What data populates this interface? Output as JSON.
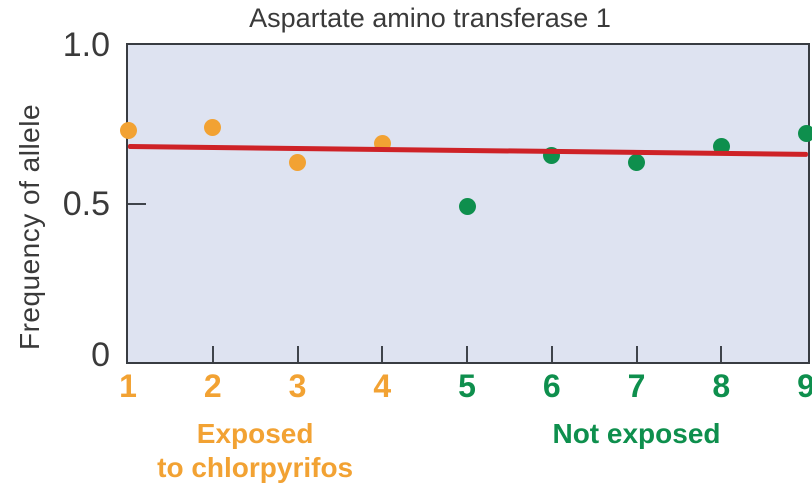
{
  "figure": {
    "title": "Aspartate amino transferase 1",
    "y_axis_label": "Frequency of allele"
  },
  "colors": {
    "exposed": "#F2A233",
    "not_exposed": "#0E8F4D",
    "trend_line": "#CE2227",
    "plot_background": "#DEE3F1",
    "axis": "#383C42",
    "tick": "#3F444B",
    "text": "#3A3A3A"
  },
  "chart_data": {
    "type": "scatter",
    "title": "Aspartate amino transferase 1",
    "xlabel": "",
    "ylabel": "Frequency of allele",
    "xlim": [
      1,
      9
    ],
    "ylim": [
      0,
      1.0
    ],
    "grid": false,
    "legend_position": "below-axis-as-colored-group-labels",
    "y_ticks": [
      {
        "label": "1.0",
        "value": 1.0
      },
      {
        "label": "0.5",
        "value": 0.5
      },
      {
        "label": "0",
        "value": 0.0
      }
    ],
    "x_ticks": [
      {
        "label": "1",
        "value": 1,
        "group": "exposed"
      },
      {
        "label": "2",
        "value": 2,
        "group": "exposed"
      },
      {
        "label": "3",
        "value": 3,
        "group": "exposed"
      },
      {
        "label": "4",
        "value": 4,
        "group": "exposed"
      },
      {
        "label": "5",
        "value": 5,
        "group": "not_exposed"
      },
      {
        "label": "6",
        "value": 6,
        "group": "not_exposed"
      },
      {
        "label": "7",
        "value": 7,
        "group": "not_exposed"
      },
      {
        "label": "8",
        "value": 8,
        "group": "not_exposed"
      },
      {
        "label": "9",
        "value": 9,
        "group": "not_exposed"
      }
    ],
    "series": [
      {
        "name": "Exposed to chlorpyrifos",
        "color_key": "exposed",
        "points": [
          {
            "x": 1,
            "y": 0.73
          },
          {
            "x": 2,
            "y": 0.74
          },
          {
            "x": 3,
            "y": 0.63
          },
          {
            "x": 4,
            "y": 0.69
          }
        ]
      },
      {
        "name": "Not exposed",
        "color_key": "not_exposed",
        "points": [
          {
            "x": 5,
            "y": 0.49
          },
          {
            "x": 6,
            "y": 0.65
          },
          {
            "x": 7,
            "y": 0.63
          },
          {
            "x": 8,
            "y": 0.68
          },
          {
            "x": 9,
            "y": 0.72
          }
        ]
      }
    ],
    "trend_line": {
      "type": "linear",
      "y_at_x1": 0.68,
      "y_at_x9": 0.655
    },
    "groups": [
      {
        "key": "exposed",
        "label_lines": [
          "Exposed",
          "to chlorpyrifos"
        ],
        "x_range": [
          1,
          4
        ]
      },
      {
        "key": "not_exposed",
        "label_lines": [
          "Not exposed"
        ],
        "x_range": [
          5,
          9
        ]
      }
    ]
  }
}
